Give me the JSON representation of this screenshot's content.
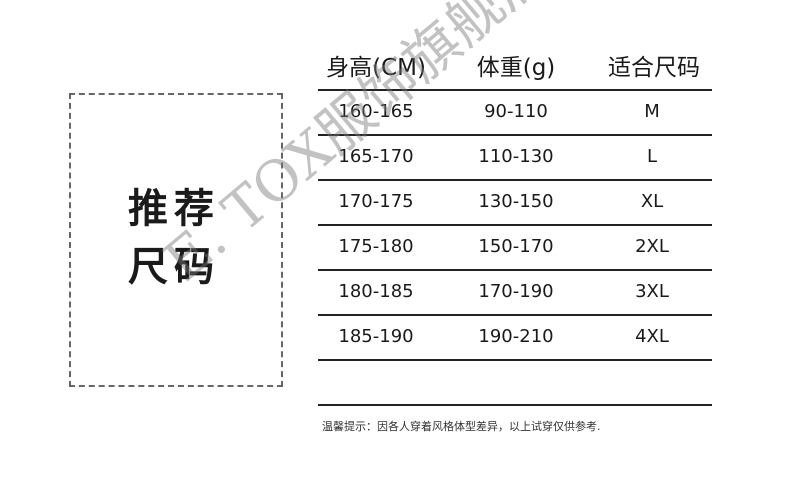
{
  "label": "推荐\n尺码",
  "label_lines": [
    "推荐",
    "尺码"
  ],
  "headers": [
    "身高(CM)",
    "体重(g)",
    "适合尺码"
  ],
  "rows": [
    [
      "160-165",
      "90-110",
      "M"
    ],
    [
      "165-170",
      "110-130",
      "L"
    ],
    [
      "170-175",
      "130-150",
      "XL"
    ],
    [
      "175-180",
      "150-170",
      "2XL"
    ],
    [
      "180-185",
      "170-190",
      "3XL"
    ],
    [
      "185-190",
      "190-210",
      "4XL"
    ]
  ],
  "note": "温馨提示：因各人穿着风格体型差异，以上试穿仅供参考.",
  "watermark": "E. TOX服饰旗舰店"
}
